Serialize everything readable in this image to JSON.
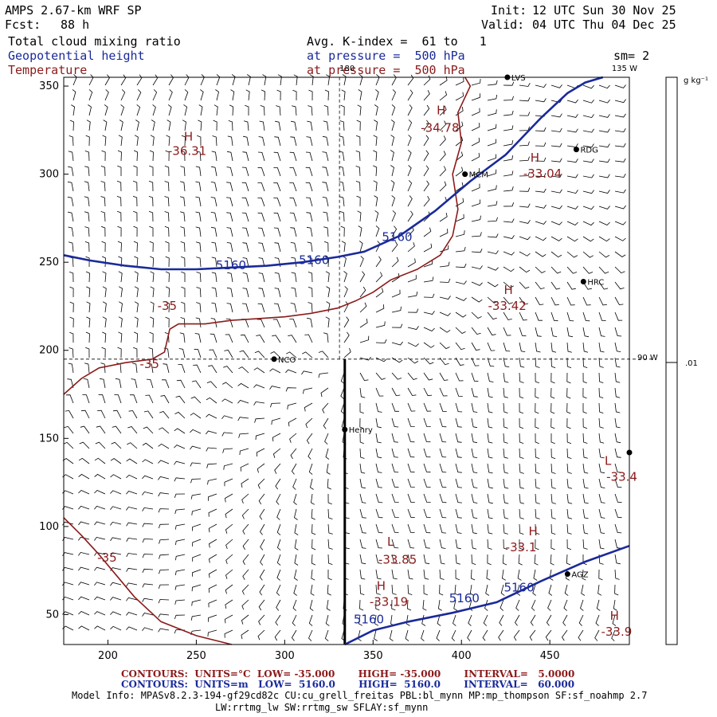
{
  "header": {
    "model_title": "AMPS 2.67-km WRF SP",
    "forecast_label": "Fcst:",
    "forecast_hours": "88 h",
    "init_label": "Init:",
    "init_time": "12 UTC Sun 30 Nov 25",
    "valid_label": "Valid:",
    "valid_time": "04 UTC Thu 04 Dec 25",
    "field1": "Total cloud mixing ratio",
    "field1_desc": "Avg. K-index =  61 to   1",
    "field2": "Geopotential height",
    "field2_desc": "at pressure =  500 hPa",
    "field3": "Temperature",
    "field3_desc": "at pressure =  500 hPa",
    "smoothing": "sm= 2"
  },
  "colors": {
    "temperature": "#8b1a1a",
    "height": "#1a2a9a",
    "barb": "#000000",
    "grid": "#000000"
  },
  "chart_data": {
    "type": "contour-map",
    "x_axis": {
      "min": 175,
      "max": 495,
      "ticks": [
        "200",
        "250",
        "300",
        "350",
        "400",
        "450"
      ],
      "tick_values": [
        200,
        250,
        300,
        350,
        400,
        450
      ]
    },
    "y_axis": {
      "min": 33,
      "max": 355,
      "ticks": [
        "50",
        "100",
        "150",
        "200",
        "250",
        "300",
        "350"
      ],
      "tick_values": [
        50,
        100,
        150,
        200,
        250,
        300,
        350
      ]
    },
    "meridian_labels": [
      {
        "text": "180",
        "x": 331,
        "y": 355
      },
      {
        "text": "135 W",
        "x": 485,
        "y": 355
      },
      {
        "text": "90 W",
        "x": 495,
        "y": 195
      }
    ],
    "colorbar": {
      "unit_label": "g kg⁻¹",
      "tick_label": ".01",
      "tick_value": 0.01
    },
    "height_contours": [
      {
        "value": 5160,
        "points": [
          [
            175,
            254
          ],
          [
            190,
            251
          ],
          [
            210,
            248
          ],
          [
            230,
            246
          ],
          [
            250,
            246
          ],
          [
            270,
            247
          ],
          [
            290,
            248
          ],
          [
            310,
            250
          ],
          [
            330,
            253
          ],
          [
            345,
            256
          ],
          [
            365,
            265
          ],
          [
            385,
            279
          ],
          [
            405,
            296
          ],
          [
            425,
            311
          ],
          [
            445,
            332
          ],
          [
            460,
            346
          ],
          [
            470,
            352
          ],
          [
            480,
            355
          ]
        ]
      },
      {
        "value": 5160,
        "points": [
          [
            334,
            33
          ],
          [
            350,
            41
          ],
          [
            370,
            46
          ],
          [
            395,
            51
          ],
          [
            420,
            57
          ],
          [
            445,
            69
          ],
          [
            470,
            80
          ],
          [
            495,
            89
          ]
        ]
      }
    ],
    "height_labels": [
      {
        "text": "5160",
        "x": 261,
        "y": 246
      },
      {
        "text": "5160",
        "x": 308,
        "y": 249
      },
      {
        "text": "5160",
        "x": 355,
        "y": 262
      },
      {
        "text": "5160",
        "x": 339,
        "y": 45
      },
      {
        "text": "5160",
        "x": 393,
        "y": 57
      },
      {
        "text": "5160",
        "x": 424,
        "y": 63
      }
    ],
    "temperature_contours": [
      {
        "value": -35,
        "points": [
          [
            175,
            175
          ],
          [
            185,
            184
          ],
          [
            195,
            190
          ],
          [
            210,
            193
          ],
          [
            225,
            195
          ],
          [
            232,
            199
          ],
          [
            235,
            212
          ],
          [
            240,
            215
          ],
          [
            255,
            215
          ],
          [
            270,
            217
          ],
          [
            285,
            218
          ],
          [
            300,
            219
          ],
          [
            315,
            221
          ],
          [
            330,
            224
          ],
          [
            340,
            228
          ],
          [
            350,
            233
          ],
          [
            360,
            240
          ],
          [
            375,
            246
          ],
          [
            388,
            254
          ],
          [
            395,
            265
          ],
          [
            398,
            280
          ],
          [
            395,
            300
          ],
          [
            400,
            318
          ],
          [
            398,
            335
          ],
          [
            405,
            350
          ],
          [
            402,
            355
          ]
        ]
      },
      {
        "value": -35,
        "points": [
          [
            175,
            105
          ],
          [
            185,
            95
          ],
          [
            195,
            84
          ],
          [
            205,
            72
          ],
          [
            215,
            60
          ],
          [
            230,
            46
          ],
          [
            250,
            38
          ],
          [
            270,
            33
          ]
        ]
      }
    ],
    "temperature_labels": [
      {
        "text": "-35",
        "x": 228,
        "y": 223
      },
      {
        "text": "-35",
        "x": 218,
        "y": 190
      },
      {
        "text": "-35",
        "x": 194,
        "y": 80
      }
    ],
    "extrema": [
      {
        "type": "H",
        "value": "-36.31",
        "x": 243,
        "y": 311,
        "hx": 243,
        "hy": 319
      },
      {
        "type": "H",
        "value": "-34.78",
        "x": 386,
        "y": 324,
        "hx": 386,
        "hy": 334
      },
      {
        "type": "H",
        "value": "-33.04",
        "x": 444,
        "y": 298,
        "hx": 439,
        "hy": 307
      },
      {
        "type": "H",
        "value": "-33.42",
        "x": 424,
        "y": 223,
        "hx": 424,
        "hy": 232
      },
      {
        "type": "L",
        "value": "-33.4",
        "x": 491,
        "y": 126,
        "hx": 481,
        "hy": 135
      },
      {
        "type": "H",
        "value": "-33.1",
        "x": 434,
        "y": 86,
        "hx": 438,
        "hy": 95
      },
      {
        "type": "L",
        "value": "-33.85",
        "x": 362,
        "y": 79,
        "hx": 358,
        "hy": 89
      },
      {
        "type": "H",
        "value": "-33.19",
        "x": 357,
        "y": 55,
        "hx": 352,
        "hy": 64
      },
      {
        "type": "H",
        "value": "-33.9",
        "x": 488,
        "y": 38,
        "hx": 484,
        "hy": 47
      }
    ],
    "stations": [
      {
        "name": "Henry",
        "x": 334,
        "y": 155
      },
      {
        "name": "NCO",
        "x": 294,
        "y": 195
      },
      {
        "name": "MCM",
        "x": 402,
        "y": 300
      },
      {
        "name": "RDG",
        "x": 465,
        "y": 314
      },
      {
        "name": "HRC",
        "x": 469,
        "y": 239
      },
      {
        "name": "AGZ",
        "x": 460,
        "y": 73
      },
      {
        "name": "LVS",
        "x": 426,
        "y": 355
      },
      {
        "name": "",
        "x": 495,
        "y": 142
      }
    ],
    "cross_section": {
      "x": 334,
      "y_from": 33,
      "y_to": 195
    },
    "dashed_meridian": {
      "x": 331,
      "y_from": 195,
      "y_to": 355
    },
    "dashed_parallel": {
      "y": 195,
      "x_from": 175,
      "x_to": 495
    }
  },
  "footer": {
    "temp_contours": "CONTOURS:  UNITS=°C  LOW= -35.000       HIGH= -35.000       INTERVAL=   5.0000",
    "height_contours": "CONTOURS:  UNITS=m   LOW=  5160.0       HIGH=  5160.0       INTERVAL=   60.000",
    "model_info_1": "Model Info: MPASv8.2.3-194-gf29cd82c CU:cu_grell_freitas PBL:bl_mynn MP:mp_thompson SF:sf_noahmp 2.7",
    "model_info_2": "LW:rrtmg_lw SW:rrtmg_sw SFLAY:sf_mynn"
  }
}
